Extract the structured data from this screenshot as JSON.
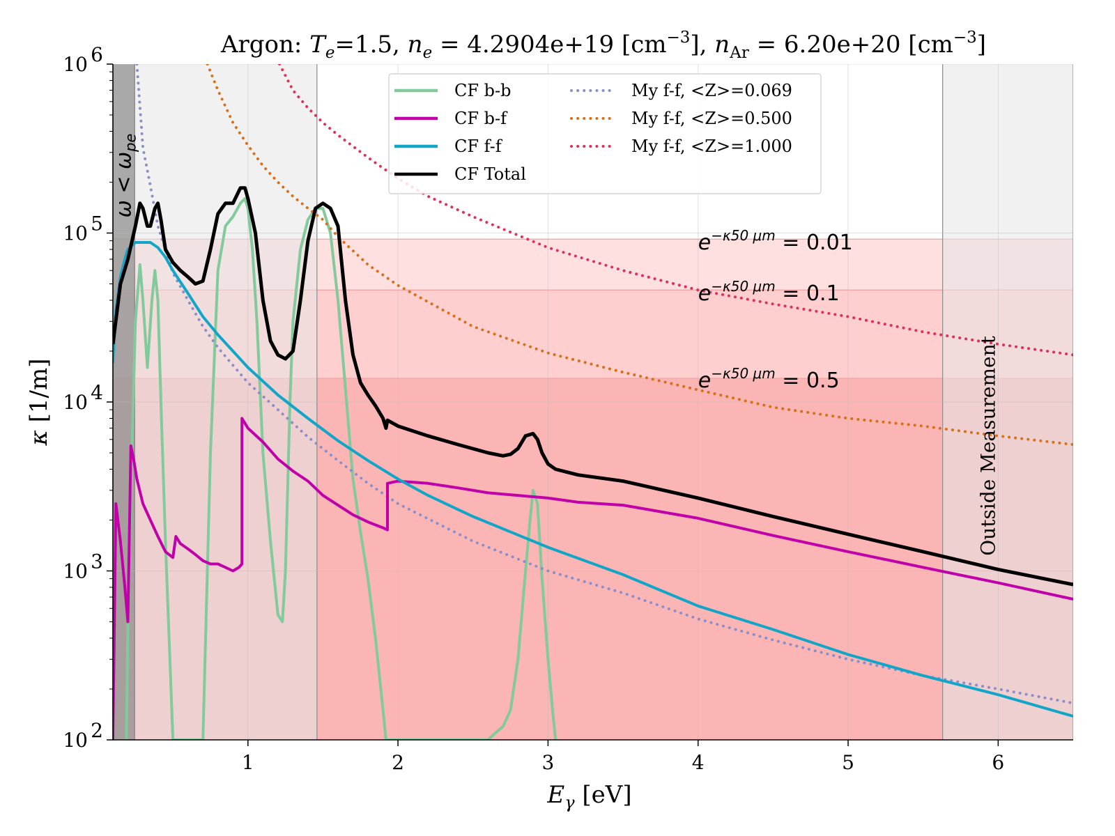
{
  "chart_data": {
    "type": "line",
    "title": "Argon: T_e=1.5, n_e = 4.2904e+19 [cm^-3], n_Ar = 6.20e+20 [cm^-3]",
    "title_parts": {
      "prefix": "Argon: ",
      "te_sym": "T",
      "te_sub": "e",
      "te_val": "=1.5, ",
      "ne_sym": "n",
      "ne_sub": "e",
      "ne_val": " = 4.2904e+19 [cm",
      "exp": "−3",
      "mid": "], ",
      "nar_sym": "n",
      "nar_sub": "Ar",
      "nar_val": " = 6.20e+20 [cm",
      "end": "]"
    },
    "xlabel": "E_γ [eV]",
    "xlabel_parts": {
      "sym": "E",
      "sub": "γ",
      "unit": " [eV]"
    },
    "ylabel": "κ [1/m]",
    "ylabel_parts": {
      "sym": "κ",
      "unit": " [1/m]"
    },
    "xlim": [
      0.1,
      6.5
    ],
    "ylim": [
      100,
      1000000
    ],
    "yscale": "log",
    "xticks": [
      1,
      2,
      3,
      4,
      5,
      6
    ],
    "xtick_labels": [
      "1",
      "2",
      "3",
      "4",
      "5",
      "6"
    ],
    "yticks": [
      100,
      1000,
      10000,
      100000,
      1000000
    ],
    "ytick_labels": [
      {
        "base": "10",
        "exp": "2"
      },
      {
        "base": "10",
        "exp": "3"
      },
      {
        "base": "10",
        "exp": "4"
      },
      {
        "base": "10",
        "exp": "5"
      },
      {
        "base": "10",
        "exp": "6"
      }
    ],
    "grid": true,
    "legend_position": "top-center",
    "shaded_regions": [
      {
        "name": "plasma-frequency-region",
        "x": [
          0.1,
          0.245
        ],
        "color": "#9a9a9a",
        "label": "ω < ω_pe",
        "label_parts": {
          "sym": "ω < ω",
          "sub": "pe"
        }
      },
      {
        "name": "outside-measurement-left",
        "x": [
          0.245,
          1.46
        ],
        "color": "#e5e5e5"
      },
      {
        "name": "outside-measurement-right",
        "x": [
          5.63,
          6.5
        ],
        "color": "#e5e5e5",
        "label": "Outside Measurement"
      }
    ],
    "transmission_bands": [
      {
        "name": "band-001",
        "y_from": 46000,
        "y_to": 92000,
        "color": "#ffe0e0",
        "label_prefix": "e",
        "label_exp": "−κ50 μm",
        "label_value": " = 0.01",
        "label_x": 4.0,
        "label_y": 80000
      },
      {
        "name": "band-01",
        "y_from": 13800,
        "y_to": 46000,
        "color": "#ffcfcf",
        "label_prefix": "e",
        "label_exp": "−κ50 μm",
        "label_value": " = 0.1",
        "label_x": 4.0,
        "label_y": 40000
      },
      {
        "name": "band-05",
        "y_from": 100,
        "y_to": 13800,
        "color": "#fbb5b5",
        "label_prefix": "e",
        "label_exp": "−κ50 μm",
        "label_value": " = 0.5",
        "label_x": 4.0,
        "label_y": 12200
      }
    ],
    "series": [
      {
        "name": "CF b-b",
        "color": "#82c99b",
        "style": "solid",
        "width": 4,
        "x": [
          0.19,
          0.2,
          0.22,
          0.25,
          0.28,
          0.3,
          0.33,
          0.36,
          0.38,
          0.4,
          0.42,
          0.45,
          0.48,
          0.5,
          0.52,
          0.55,
          0.6,
          0.65,
          0.7,
          0.75,
          0.8,
          0.85,
          0.9,
          0.95,
          0.98,
          1.0,
          1.03,
          1.06,
          1.1,
          1.15,
          1.2,
          1.23,
          1.25,
          1.28,
          1.3,
          1.35,
          1.4,
          1.45,
          1.5,
          1.55,
          1.6,
          1.65,
          1.7,
          1.75,
          1.8,
          1.85,
          1.9,
          1.92,
          2.6,
          2.65,
          2.7,
          2.75,
          2.8,
          2.85,
          2.88,
          2.9,
          2.93,
          2.96,
          3.0,
          3.03,
          3.05
        ],
        "y": [
          100,
          500,
          3000,
          30000,
          65000,
          40000,
          16000,
          40000,
          60000,
          40000,
          10000,
          1500,
          300,
          100,
          100,
          100,
          100,
          100,
          100,
          5000,
          60000,
          110000,
          125000,
          150000,
          160000,
          140000,
          80000,
          30000,
          5000,
          1500,
          550,
          500,
          1000,
          10000,
          30000,
          80000,
          120000,
          140000,
          140000,
          100000,
          40000,
          12000,
          3500,
          1700,
          900,
          400,
          150,
          100,
          100,
          110,
          120,
          150,
          300,
          1000,
          2000,
          3000,
          2500,
          900,
          300,
          150,
          100
        ]
      },
      {
        "name": "CF b-f",
        "color": "#c000a8",
        "style": "solid",
        "width": 4,
        "x": [
          0.1,
          0.12,
          0.15,
          0.18,
          0.2,
          0.22,
          0.24,
          0.26,
          0.3,
          0.35,
          0.4,
          0.45,
          0.5,
          0.52,
          0.55,
          0.6,
          0.65,
          0.7,
          0.75,
          0.8,
          0.85,
          0.9,
          0.94,
          0.96,
          0.96,
          1.0,
          1.1,
          1.2,
          1.3,
          1.4,
          1.5,
          1.6,
          1.7,
          1.8,
          1.9,
          1.93,
          1.93,
          2.0,
          2.2,
          2.4,
          2.6,
          2.8,
          3.0,
          3.2,
          3.5,
          4.0,
          4.5,
          5.0,
          5.5,
          6.0,
          6.5
        ],
        "y": [
          100,
          2500,
          1500,
          800,
          500,
          5500,
          4500,
          3500,
          2500,
          2000,
          1600,
          1300,
          1200,
          1600,
          1450,
          1350,
          1250,
          1150,
          1100,
          1100,
          1050,
          1000,
          1050,
          1100,
          8000,
          7000,
          5800,
          4600,
          3900,
          3400,
          2800,
          2450,
          2150,
          1950,
          1800,
          1750,
          3300,
          3400,
          3300,
          3100,
          2900,
          2800,
          2700,
          2550,
          2450,
          2050,
          1620,
          1300,
          1050,
          850,
          680
        ]
      },
      {
        "name": "CF f-f",
        "color": "#11a6c8",
        "style": "solid",
        "width": 4,
        "x": [
          0.1,
          0.12,
          0.15,
          0.18,
          0.2,
          0.25,
          0.3,
          0.35,
          0.4,
          0.45,
          0.5,
          0.6,
          0.7,
          0.8,
          0.9,
          1.0,
          1.2,
          1.4,
          1.6,
          1.8,
          2.0,
          2.2,
          2.5,
          3.0,
          3.5,
          4.0,
          4.5,
          5.0,
          5.5,
          6.0,
          6.5
        ],
        "y": [
          17000,
          35000,
          55000,
          70000,
          80000,
          88000,
          88000,
          88000,
          82000,
          72000,
          60000,
          44000,
          32000,
          25000,
          20000,
          16000,
          11000,
          8000,
          5900,
          4500,
          3500,
          2800,
          2100,
          1380,
          950,
          620,
          450,
          320,
          240,
          185,
          138
        ]
      },
      {
        "name": "CF Total",
        "color": "#000000",
        "style": "solid",
        "width": 5,
        "x": [
          0.1,
          0.15,
          0.2,
          0.25,
          0.28,
          0.3,
          0.33,
          0.35,
          0.38,
          0.4,
          0.42,
          0.45,
          0.5,
          0.55,
          0.6,
          0.65,
          0.7,
          0.75,
          0.8,
          0.85,
          0.9,
          0.95,
          0.98,
          1.0,
          1.05,
          1.1,
          1.15,
          1.2,
          1.25,
          1.3,
          1.35,
          1.4,
          1.45,
          1.5,
          1.55,
          1.6,
          1.65,
          1.7,
          1.75,
          1.8,
          1.85,
          1.9,
          1.92,
          1.93,
          2.0,
          2.2,
          2.4,
          2.6,
          2.7,
          2.75,
          2.8,
          2.85,
          2.9,
          2.93,
          2.96,
          3.0,
          3.05,
          3.2,
          3.5,
          4.0,
          4.5,
          5.0,
          5.5,
          6.0,
          6.5
        ],
        "y": [
          22000,
          50000,
          70000,
          110000,
          150000,
          140000,
          110000,
          110000,
          140000,
          150000,
          120000,
          80000,
          67000,
          60000,
          55000,
          50000,
          52000,
          80000,
          130000,
          150000,
          150000,
          185000,
          185000,
          160000,
          100000,
          40000,
          23000,
          19000,
          18000,
          20000,
          40000,
          90000,
          140000,
          150000,
          140000,
          110000,
          40000,
          19000,
          13000,
          11000,
          9500,
          8000,
          7000,
          7800,
          7200,
          6300,
          5600,
          5000,
          4800,
          4900,
          5300,
          6300,
          6500,
          6000,
          5000,
          4300,
          4000,
          3700,
          3400,
          2700,
          2100,
          1650,
          1300,
          1020,
          830
        ]
      },
      {
        "name": "My f-f, <Z>=0.069",
        "color": "#8c8ec8",
        "style": "dotted",
        "width": 4,
        "x": [
          0.26,
          0.3,
          0.35,
          0.4,
          0.5,
          0.6,
          0.7,
          0.8,
          0.9,
          1.0,
          1.2,
          1.4,
          1.6,
          1.8,
          2.0,
          2.5,
          3.0,
          3.5,
          4.0,
          4.5,
          5.0,
          5.5,
          6.0,
          6.5
        ],
        "y": [
          1000000,
          320000,
          190000,
          110000,
          58000,
          40000,
          28000,
          21000,
          16500,
          13000,
          9000,
          6200,
          4500,
          3300,
          2500,
          1500,
          1000,
          740,
          520,
          390,
          300,
          240,
          200,
          165
        ]
      },
      {
        "name": "My f-f, <Z>=0.500",
        "color": "#d8701a",
        "style": "dotted",
        "width": 4,
        "x": [
          0.73,
          0.8,
          0.9,
          1.0,
          1.1,
          1.2,
          1.3,
          1.4,
          1.5,
          1.6,
          1.8,
          2.0,
          2.5,
          3.0,
          3.5,
          4.0,
          4.5,
          5.0,
          5.5,
          6.0,
          6.5
        ],
        "y": [
          1000000,
          700000,
          450000,
          330000,
          250000,
          200000,
          165000,
          140000,
          120000,
          95000,
          65000,
          49000,
          28000,
          19500,
          15000,
          11800,
          9300,
          8000,
          7200,
          6300,
          5600
        ]
      },
      {
        "name": "My f-f, <Z>=1.000",
        "color": "#e0305a",
        "style": "dotted",
        "width": 4,
        "x": [
          1.21,
          1.3,
          1.4,
          1.5,
          1.6,
          1.8,
          2.0,
          2.2,
          2.5,
          3.0,
          3.5,
          4.0,
          4.5,
          5.0,
          5.5,
          6.0,
          6.5
        ],
        "y": [
          1000000,
          700000,
          550000,
          450000,
          380000,
          280000,
          210000,
          165000,
          125000,
          82000,
          60000,
          46000,
          38000,
          32000,
          26000,
          22000,
          19000
        ]
      }
    ],
    "legend": [
      {
        "label": "CF b-b",
        "color": "#82c99b",
        "style": "solid"
      },
      {
        "label": "CF b-f",
        "color": "#c000a8",
        "style": "solid"
      },
      {
        "label": "CF f-f",
        "color": "#11a6c8",
        "style": "solid"
      },
      {
        "label": "CF Total",
        "color": "#000000",
        "style": "solid"
      },
      {
        "label": "My f-f, <Z>=0.069",
        "color": "#8c8ec8",
        "style": "dotted"
      },
      {
        "label": "My f-f, <Z>=0.500",
        "color": "#d8701a",
        "style": "dotted"
      },
      {
        "label": "My f-f, <Z>=1.000",
        "color": "#e0305a",
        "style": "dotted"
      }
    ]
  }
}
